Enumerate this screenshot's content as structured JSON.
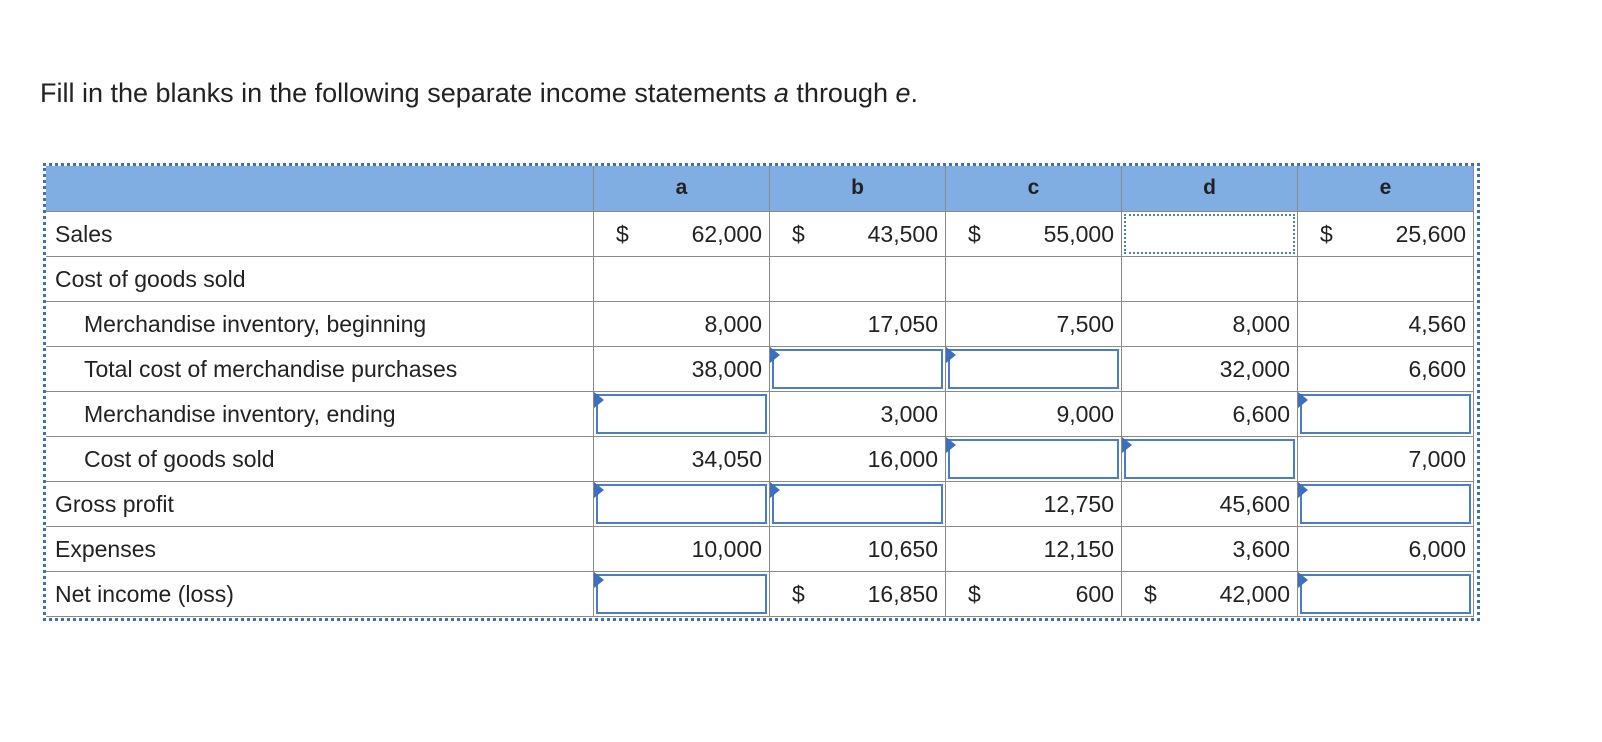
{
  "title": [
    "Fill in the blanks in the following separate income statements ",
    "a",
    " through ",
    "e",
    "."
  ],
  "table": {
    "columns": [
      "a",
      "b",
      "c",
      "d",
      "e"
    ],
    "rows": [
      {
        "label": "Sales",
        "cells": [
          {
            "symbol": "$",
            "value": "62,000"
          },
          {
            "symbol": "$",
            "value": "43,500"
          },
          {
            "symbol": "$",
            "value": "55,000"
          },
          null,
          {
            "symbol": "$",
            "value": "25,600"
          }
        ]
      },
      {
        "label": "Cost of goods sold"
      },
      {
        "label": "Merchandise inventory, beginning",
        "indent": 1,
        "cells": [
          "8,000",
          "17,050",
          "7,500",
          "8,000",
          "4,560"
        ]
      },
      {
        "label": "Total cost of merchandise purchases",
        "indent": 1,
        "cells": [
          "38,000",
          null,
          null,
          "32,000",
          "6,600"
        ]
      },
      {
        "label": "Merchandise inventory, ending",
        "indent": 1,
        "cells": [
          null,
          "3,000",
          "9,000",
          "6,600",
          null
        ]
      },
      {
        "label": "Cost of goods sold",
        "indent": 1,
        "cells": [
          "34,050",
          "16,000",
          null,
          null,
          "7,000"
        ]
      },
      {
        "label": "Gross profit",
        "cells": [
          null,
          null,
          "12,750",
          "45,600",
          null
        ]
      },
      {
        "label": "Expenses",
        "cells": [
          "10,000",
          "10,650",
          "12,150",
          "3,600",
          "6,000"
        ]
      },
      {
        "label": "Net income (loss)",
        "cells": [
          null,
          {
            "symbol": "$",
            "value": "16,850"
          },
          {
            "symbol": "$",
            "value": "600"
          },
          {
            "symbol": "$",
            "value": "42,000"
          },
          null
        ]
      }
    ]
  }
}
